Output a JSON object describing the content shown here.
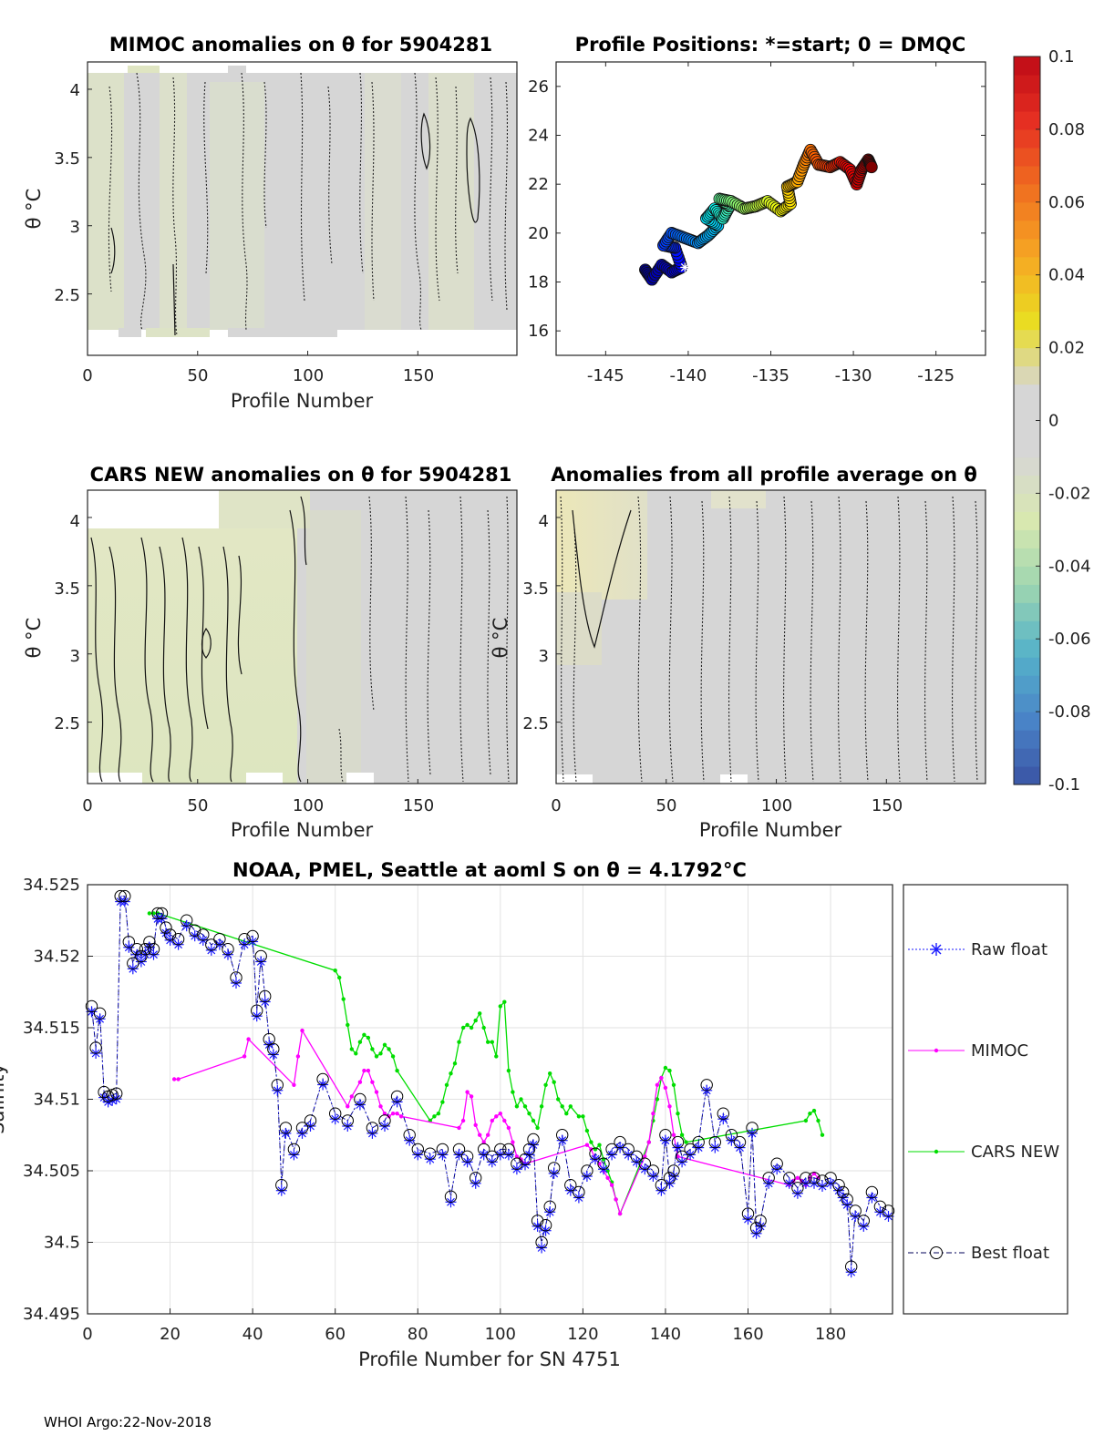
{
  "footer": "WHOI Argo:22-Nov-2018",
  "chart_data": [
    {
      "id": "mimoc",
      "type": "heatmap",
      "title": "MIMOC anomalies on θ  for 5904281",
      "xlabel": "Profile Number",
      "ylabel": "θ °C",
      "xlim": [
        0,
        195
      ],
      "ylim": [
        2.05,
        4.2
      ],
      "xticks": [
        "0",
        "50",
        "100",
        "150"
      ],
      "yticks": [
        "2.5",
        "3",
        "3.5",
        "4"
      ],
      "field": "near-zero anomalies (grey) with faint negative (light green) patches; dotted and solid zero-level contours"
    },
    {
      "id": "positions",
      "type": "scatter",
      "title": "Profile Positions: *=start; 0 = DMQC",
      "xlim": [
        -148,
        -122
      ],
      "ylim": [
        15,
        27
      ],
      "xticks": [
        "-145",
        "-140",
        "-135",
        "-130",
        "-125"
      ],
      "yticks": [
        "16",
        "18",
        "20",
        "22",
        "24",
        "26"
      ],
      "track": [
        [
          -142.6,
          18.5
        ],
        [
          -142.2,
          18.1
        ],
        [
          -141.6,
          18.7
        ],
        [
          -141.0,
          18.4
        ],
        [
          -140.4,
          18.6
        ],
        [
          -140.8,
          19.4
        ],
        [
          -141.5,
          19.5
        ],
        [
          -141.0,
          20.0
        ],
        [
          -140.2,
          19.8
        ],
        [
          -139.4,
          19.6
        ],
        [
          -138.8,
          19.9
        ],
        [
          -138.2,
          20.3
        ],
        [
          -138.9,
          20.6
        ],
        [
          -138.4,
          21.0
        ],
        [
          -137.9,
          20.6
        ],
        [
          -137.5,
          21.1
        ],
        [
          -138.1,
          21.4
        ],
        [
          -137.4,
          21.3
        ],
        [
          -136.6,
          21.0
        ],
        [
          -135.9,
          21.1
        ],
        [
          -135.2,
          21.3
        ],
        [
          -134.4,
          20.9
        ],
        [
          -133.8,
          21.2
        ],
        [
          -134.0,
          21.9
        ],
        [
          -133.4,
          22.1
        ],
        [
          -133.0,
          22.8
        ],
        [
          -132.6,
          23.4
        ],
        [
          -132.1,
          22.8
        ],
        [
          -131.4,
          22.7
        ],
        [
          -130.8,
          22.9
        ],
        [
          -130.2,
          22.6
        ],
        [
          -129.8,
          22.0
        ],
        [
          -129.5,
          22.6
        ],
        [
          -129.1,
          23.0
        ],
        [
          -128.9,
          22.7
        ]
      ],
      "color_range": [
        0,
        195
      ],
      "start_marker": "*"
    },
    {
      "id": "cars",
      "type": "heatmap",
      "title": "CARS NEW anomalies on θ for 5904281",
      "xlabel": "Profile Number",
      "ylabel": "θ °C",
      "xlim": [
        0,
        195
      ],
      "ylim": [
        2.05,
        4.2
      ],
      "xticks": [
        "0",
        "50",
        "100",
        "150"
      ],
      "yticks": [
        "2.5",
        "3",
        "3.5",
        "4"
      ],
      "field": "negative anomalies (light green) for profiles 0-100 with solid contours; near zero (grey) after"
    },
    {
      "id": "allavg",
      "type": "heatmap",
      "title": "Anomalies from all profile average on θ",
      "xlabel": "Profile Number",
      "ylabel": "θ °C",
      "xlim": [
        0,
        195
      ],
      "ylim": [
        2.05,
        4.2
      ],
      "xticks": [
        "0",
        "50",
        "100",
        "150"
      ],
      "yticks": [
        "2.5",
        "3",
        "3.5",
        "4"
      ],
      "field": "near-zero anomalies (grey), slight positive (yellow) near profiles 0-40 at top"
    },
    {
      "id": "colorbar",
      "type": "heatmap",
      "range": [
        -0.1,
        0.1
      ],
      "ticks": [
        "-0.1",
        "-0.08",
        "-0.06",
        "-0.04",
        "-0.02",
        "0",
        "0.02",
        "0.04",
        "0.06",
        "0.08",
        "0.1"
      ],
      "stops": [
        "#3a53a4",
        "#4a85c8",
        "#56b3c9",
        "#9ed6b0",
        "#d9e8b0",
        "#d6d6d6",
        "#d6d6d6",
        "#eadd22",
        "#f6a623",
        "#f07020",
        "#e63022",
        "#bf0b16"
      ]
    },
    {
      "id": "salinity",
      "type": "line",
      "title": "NOAA, PMEL, Seattle at aoml S on θ = 4.1792°C",
      "xlabel": "Profile Number for SN 4751",
      "ylabel": "Salinity",
      "xlim": [
        0,
        195
      ],
      "ylim": [
        34.495,
        34.525
      ],
      "xticks": [
        "0",
        "20",
        "40",
        "60",
        "80",
        "100",
        "120",
        "140",
        "160",
        "180"
      ],
      "yticks": [
        "34.495",
        "34.5",
        "34.505",
        "34.51",
        "34.515",
        "34.52",
        "34.525"
      ],
      "legend": [
        "Raw float",
        "MIMOC",
        "CARS NEW",
        "Best float"
      ],
      "series": [
        {
          "name": "Best float",
          "x": [
            1,
            2,
            3,
            4,
            5,
            6,
            7,
            8,
            9,
            10,
            11,
            12,
            13,
            14,
            15,
            16,
            17,
            18,
            19,
            20,
            22,
            24,
            26,
            28,
            30,
            32,
            34,
            36,
            38,
            40,
            41,
            42,
            43,
            44,
            45,
            46,
            47,
            48,
            50,
            52,
            54,
            57,
            60,
            63,
            66,
            69,
            72,
            75,
            78,
            80,
            83,
            86,
            88,
            90,
            92,
            94,
            96,
            98,
            100,
            102,
            104,
            106,
            107,
            108,
            109,
            110,
            111,
            112,
            113,
            115,
            117,
            119,
            121,
            123,
            125,
            127,
            129,
            131,
            133,
            135,
            137,
            139,
            140,
            141,
            142,
            143,
            144,
            146,
            148,
            150,
            152,
            154,
            156,
            158,
            160,
            161,
            162,
            163,
            165,
            167,
            170,
            172,
            174,
            176,
            178,
            180,
            182,
            183,
            184,
            185,
            186,
            188,
            190,
            192,
            194
          ],
          "y": [
            34.5165,
            34.5136,
            34.516,
            34.5105,
            34.5102,
            34.5103,
            34.5104,
            34.5242,
            34.5242,
            34.521,
            34.5195,
            34.5205,
            34.52,
            34.5205,
            34.521,
            34.5205,
            34.523,
            34.523,
            34.522,
            34.5215,
            34.5212,
            34.5225,
            34.5218,
            34.5215,
            34.5208,
            34.5212,
            34.5205,
            34.5185,
            34.5212,
            34.5214,
            34.5162,
            34.52,
            34.5172,
            34.5142,
            34.5135,
            34.511,
            34.504,
            34.508,
            34.5065,
            34.508,
            34.5085,
            34.5114,
            34.509,
            34.5085,
            34.51,
            34.508,
            34.5085,
            34.5102,
            34.5075,
            34.5065,
            34.5062,
            34.5065,
            34.5032,
            34.5065,
            34.506,
            34.5045,
            34.5065,
            34.506,
            34.5065,
            34.5065,
            34.5055,
            34.5058,
            34.5065,
            34.5072,
            34.5015,
            34.5,
            34.5012,
            34.5025,
            34.5052,
            34.5075,
            34.504,
            34.5035,
            34.505,
            34.5062,
            34.5055,
            34.5065,
            34.507,
            34.5065,
            34.506,
            34.5055,
            34.505,
            34.504,
            34.5075,
            34.5045,
            34.505,
            34.507,
            34.506,
            34.5065,
            34.507,
            34.511,
            34.507,
            34.509,
            34.5075,
            34.507,
            34.502,
            34.508,
            34.501,
            34.5015,
            34.5045,
            34.5055,
            34.5045,
            34.5038,
            34.5045,
            34.5045,
            34.5043,
            34.5045,
            34.504,
            34.5035,
            34.503,
            34.4983,
            34.5022,
            34.5015,
            34.5035,
            34.5025,
            34.5022
          ]
        },
        {
          "name": "MIMOC",
          "x": [
            21,
            22,
            38,
            39,
            50,
            51,
            52,
            63,
            64,
            66,
            67,
            68,
            69,
            70,
            71,
            72,
            73,
            74,
            75,
            76,
            90,
            91,
            92,
            93,
            94,
            95,
            96,
            97,
            98,
            99,
            100,
            101,
            102,
            103,
            104,
            105,
            106,
            121,
            122,
            123,
            124,
            125,
            126,
            127,
            128,
            129,
            135,
            136,
            137,
            138,
            139,
            140,
            141,
            142,
            143,
            170,
            171,
            172,
            173,
            174,
            175,
            176,
            177
          ],
          "y": [
            34.5114,
            34.5114,
            34.513,
            34.5142,
            34.511,
            34.513,
            34.5148,
            34.5095,
            34.5102,
            34.5112,
            34.512,
            34.512,
            34.5112,
            34.5105,
            34.5095,
            34.509,
            34.5088,
            34.509,
            34.509,
            34.5088,
            34.508,
            34.5085,
            34.5105,
            34.5102,
            34.5082,
            34.5075,
            34.507,
            34.5075,
            34.5085,
            34.5088,
            34.509,
            34.5085,
            34.508,
            34.507,
            34.506,
            34.5058,
            34.5055,
            34.5068,
            34.5065,
            34.5058,
            34.5055,
            34.505,
            34.5045,
            34.504,
            34.503,
            34.502,
            34.506,
            34.507,
            34.509,
            34.511,
            34.5115,
            34.5108,
            34.5095,
            34.5075,
            34.506,
            34.504,
            34.5043,
            34.5045,
            34.5043,
            34.504,
            34.5045,
            34.5048,
            34.5045
          ]
        },
        {
          "name": "CARS NEW",
          "x": [
            15,
            16,
            17,
            60,
            61,
            62,
            63,
            64,
            65,
            66,
            67,
            68,
            69,
            70,
            71,
            72,
            73,
            74,
            75,
            83,
            84,
            85,
            86,
            87,
            88,
            89,
            90,
            91,
            92,
            93,
            94,
            95,
            96,
            97,
            98,
            99,
            100,
            101,
            102,
            103,
            104,
            105,
            106,
            107,
            108,
            109,
            110,
            111,
            112,
            113,
            114,
            115,
            116,
            117,
            119,
            120,
            121,
            122,
            123,
            124,
            125,
            126,
            127,
            128,
            129,
            136,
            137,
            138,
            139,
            140,
            141,
            142,
            143,
            144,
            145,
            174,
            175,
            176,
            177,
            178
          ],
          "y": [
            34.523,
            34.523,
            34.523,
            34.519,
            34.5185,
            34.517,
            34.5152,
            34.5135,
            34.5132,
            34.514,
            34.5145,
            34.5143,
            34.5135,
            34.513,
            34.5132,
            34.5138,
            34.5135,
            34.513,
            34.512,
            34.5085,
            34.5088,
            34.509,
            34.5098,
            34.511,
            34.5118,
            34.5125,
            34.514,
            34.515,
            34.5152,
            34.515,
            34.5155,
            34.516,
            34.515,
            34.514,
            34.514,
            34.513,
            34.5165,
            34.5168,
            34.512,
            34.5105,
            34.5095,
            34.51,
            34.5095,
            34.509,
            34.5085,
            34.508,
            34.5095,
            34.511,
            34.5118,
            34.5112,
            34.51,
            34.5095,
            34.509,
            34.5095,
            34.5088,
            34.5088,
            34.5078,
            34.507,
            34.5065,
            34.5068,
            34.5058,
            34.505,
            34.5042,
            34.503,
            34.502,
            34.507,
            34.5085,
            34.51,
            34.5115,
            34.5122,
            34.512,
            34.511,
            34.509,
            34.5075,
            34.507,
            34.5085,
            34.509,
            34.5092,
            34.5085,
            34.5075
          ]
        }
      ]
    }
  ]
}
